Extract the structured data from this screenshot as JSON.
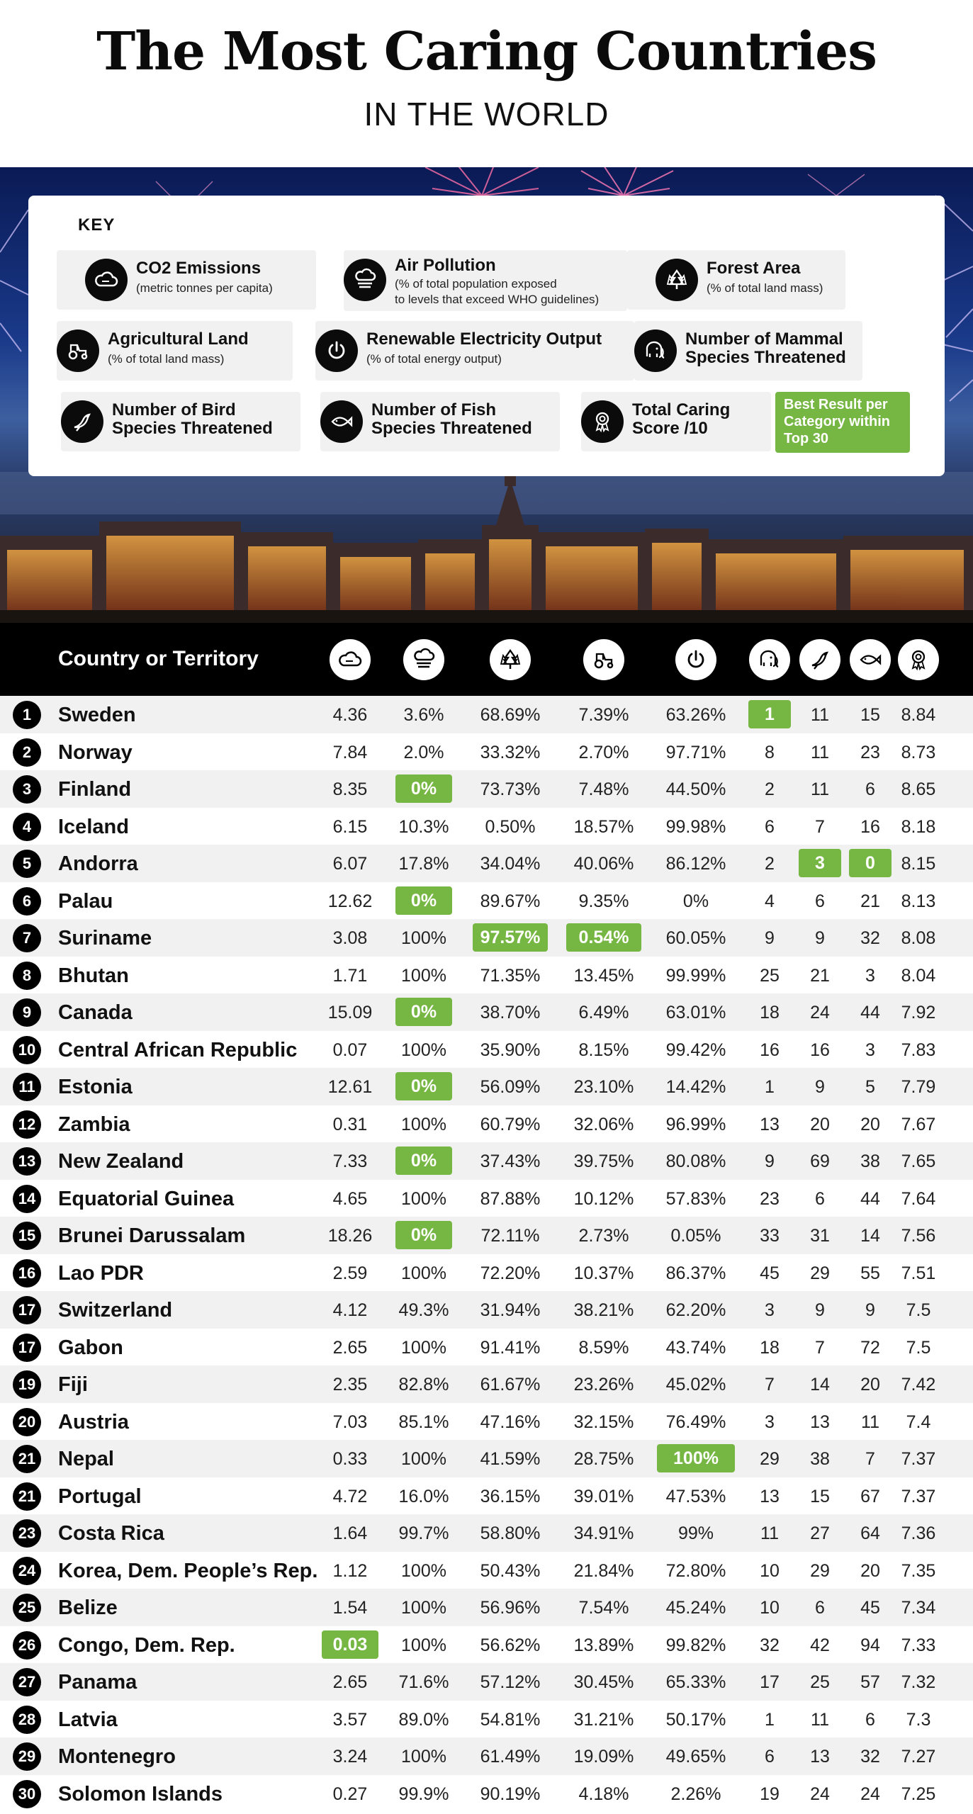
{
  "title": "The Most Caring Countries",
  "subtitle": "IN THE WORLD",
  "key": {
    "title": "KEY",
    "items": [
      {
        "icon": "co2-cloud-icon",
        "main": "CO2 Emissions",
        "sub": "(metric tonnes per capita)"
      },
      {
        "icon": "air-pollution-icon",
        "main": "Air Pollution",
        "sub": "(% of total population exposed",
        "sub2": "to levels that exceed WHO guidelines)"
      },
      {
        "icon": "forest-icon",
        "main": "Forest Area",
        "sub": "(% of total land mass)"
      },
      {
        "icon": "tractor-icon",
        "main": "Agricultural Land",
        "sub": "(% of total land mass)"
      },
      {
        "icon": "power-icon",
        "main": "Renewable Electricity Output",
        "sub": "(% of total energy output)"
      },
      {
        "icon": "elephant-icon",
        "main": "Number of Mammal",
        "sub": "Species Threatened"
      },
      {
        "icon": "bird-icon",
        "main": "Number of Bird",
        "sub": "Species Threatened"
      },
      {
        "icon": "fish-icon",
        "main": "Number of Fish",
        "sub": "Species Threatened"
      },
      {
        "icon": "award-icon",
        "main": "Total Caring",
        "sub": "Score /10"
      }
    ],
    "best_label_1": "Best Result per",
    "best_label_2": "Category within",
    "best_label_3": "Top 30",
    "best_color": "#76b643"
  },
  "table": {
    "header_label": "Country or Territory",
    "column_icons": [
      "co2-cloud-icon",
      "air-pollution-icon",
      "forest-icon",
      "tractor-icon",
      "power-icon",
      "elephant-icon",
      "bird-icon",
      "fish-icon",
      "award-icon"
    ],
    "rows": [
      {
        "rank": "1",
        "country": "Sweden",
        "values": [
          "4.36",
          "3.6%",
          "68.69%",
          "7.39%",
          "63.26%",
          "1",
          "11",
          "15",
          "8.84"
        ],
        "best": [
          5
        ]
      },
      {
        "rank": "2",
        "country": "Norway",
        "values": [
          "7.84",
          "2.0%",
          "33.32%",
          "2.70%",
          "97.71%",
          "8",
          "11",
          "23",
          "8.73"
        ],
        "best": []
      },
      {
        "rank": "3",
        "country": "Finland",
        "values": [
          "8.35",
          "0%",
          "73.73%",
          "7.48%",
          "44.50%",
          "2",
          "11",
          "6",
          "8.65"
        ],
        "best": [
          1
        ]
      },
      {
        "rank": "4",
        "country": "Iceland",
        "values": [
          "6.15",
          "10.3%",
          "0.50%",
          "18.57%",
          "99.98%",
          "6",
          "7",
          "16",
          "8.18"
        ],
        "best": []
      },
      {
        "rank": "5",
        "country": "Andorra",
        "values": [
          "6.07",
          "17.8%",
          "34.04%",
          "40.06%",
          "86.12%",
          "2",
          "3",
          "0",
          "8.15"
        ],
        "best": [
          6,
          7
        ]
      },
      {
        "rank": "6",
        "country": "Palau",
        "values": [
          "12.62",
          "0%",
          "89.67%",
          "9.35%",
          "0%",
          "4",
          "6",
          "21",
          "8.13"
        ],
        "best": [
          1
        ]
      },
      {
        "rank": "7",
        "country": "Suriname",
        "values": [
          "3.08",
          "100%",
          "97.57%",
          "0.54%",
          "60.05%",
          "9",
          "9",
          "32",
          "8.08"
        ],
        "best": [
          2,
          3
        ]
      },
      {
        "rank": "8",
        "country": "Bhutan",
        "values": [
          "1.71",
          "100%",
          "71.35%",
          "13.45%",
          "99.99%",
          "25",
          "21",
          "3",
          "8.04"
        ],
        "best": []
      },
      {
        "rank": "9",
        "country": "Canada",
        "values": [
          "15.09",
          "0%",
          "38.70%",
          "6.49%",
          "63.01%",
          "18",
          "24",
          "44",
          "7.92"
        ],
        "best": [
          1
        ]
      },
      {
        "rank": "10",
        "country": "Central African Republic",
        "values": [
          "0.07",
          "100%",
          "35.90%",
          "8.15%",
          "99.42%",
          "16",
          "16",
          "3",
          "7.83"
        ],
        "best": []
      },
      {
        "rank": "11",
        "country": "Estonia",
        "values": [
          "12.61",
          "0%",
          "56.09%",
          "23.10%",
          "14.42%",
          "1",
          "9",
          "5",
          "7.79"
        ],
        "best": [
          1
        ]
      },
      {
        "rank": "12",
        "country": "Zambia",
        "values": [
          "0.31",
          "100%",
          "60.79%",
          "32.06%",
          "96.99%",
          "13",
          "20",
          "20",
          "7.67"
        ],
        "best": []
      },
      {
        "rank": "13",
        "country": "New Zealand",
        "values": [
          "7.33",
          "0%",
          "37.43%",
          "39.75%",
          "80.08%",
          "9",
          "69",
          "38",
          "7.65"
        ],
        "best": [
          1
        ]
      },
      {
        "rank": "14",
        "country": "Equatorial Guinea",
        "values": [
          "4.65",
          "100%",
          "87.88%",
          "10.12%",
          "57.83%",
          "23",
          "6",
          "44",
          "7.64"
        ],
        "best": []
      },
      {
        "rank": "15",
        "country": "Brunei Darussalam",
        "values": [
          "18.26",
          "0%",
          "72.11%",
          "2.73%",
          "0.05%",
          "33",
          "31",
          "14",
          "7.56"
        ],
        "best": [
          1
        ]
      },
      {
        "rank": "16",
        "country": "Lao PDR",
        "values": [
          "2.59",
          "100%",
          "72.20%",
          "10.37%",
          "86.37%",
          "45",
          "29",
          "55",
          "7.51"
        ],
        "best": []
      },
      {
        "rank": "17",
        "country": "Switzerland",
        "values": [
          "4.12",
          "49.3%",
          "31.94%",
          "38.21%",
          "62.20%",
          "3",
          "9",
          "9",
          "7.5"
        ],
        "best": []
      },
      {
        "rank": "17",
        "country": "Gabon",
        "values": [
          "2.65",
          "100%",
          "91.41%",
          "8.59%",
          "43.74%",
          "18",
          "7",
          "72",
          "7.5"
        ],
        "best": []
      },
      {
        "rank": "19",
        "country": "Fiji",
        "values": [
          "2.35",
          "82.8%",
          "61.67%",
          "23.26%",
          "45.02%",
          "7",
          "14",
          "20",
          "7.42"
        ],
        "best": []
      },
      {
        "rank": "20",
        "country": "Austria",
        "values": [
          "7.03",
          "85.1%",
          "47.16%",
          "32.15%",
          "76.49%",
          "3",
          "13",
          "11",
          "7.4"
        ],
        "best": []
      },
      {
        "rank": "21",
        "country": "Nepal",
        "values": [
          "0.33",
          "100%",
          "41.59%",
          "28.75%",
          "100%",
          "29",
          "38",
          "7",
          "7.37"
        ],
        "best": [
          4
        ]
      },
      {
        "rank": "21",
        "country": "Portugal",
        "values": [
          "4.72",
          "16.0%",
          "36.15%",
          "39.01%",
          "47.53%",
          "13",
          "15",
          "67",
          "7.37"
        ],
        "best": []
      },
      {
        "rank": "23",
        "country": "Costa Rica",
        "values": [
          "1.64",
          "99.7%",
          "58.80%",
          "34.91%",
          "99%",
          "11",
          "27",
          "64",
          "7.36"
        ],
        "best": []
      },
      {
        "rank": "24",
        "country": "Korea, Dem. People’s Rep.",
        "values": [
          "1.12",
          "100%",
          "50.43%",
          "21.84%",
          "72.80%",
          "10",
          "29",
          "20",
          "7.35"
        ],
        "best": []
      },
      {
        "rank": "25",
        "country": "Belize",
        "values": [
          "1.54",
          "100%",
          "56.96%",
          "7.54%",
          "45.24%",
          "10",
          "6",
          "45",
          "7.34"
        ],
        "best": []
      },
      {
        "rank": "26",
        "country": "Congo, Dem. Rep.",
        "values": [
          "0.03",
          "100%",
          "56.62%",
          "13.89%",
          "99.82%",
          "32",
          "42",
          "94",
          "7.33"
        ],
        "best": [
          0
        ]
      },
      {
        "rank": "27",
        "country": "Panama",
        "values": [
          "2.65",
          "71.6%",
          "57.12%",
          "30.45%",
          "65.33%",
          "17",
          "25",
          "57",
          "7.32"
        ],
        "best": []
      },
      {
        "rank": "28",
        "country": "Latvia",
        "values": [
          "3.57",
          "89.0%",
          "54.81%",
          "31.21%",
          "50.17%",
          "1",
          "11",
          "6",
          "7.3"
        ],
        "best": []
      },
      {
        "rank": "29",
        "country": "Montenegro",
        "values": [
          "3.24",
          "100%",
          "61.49%",
          "19.09%",
          "49.65%",
          "6",
          "13",
          "32",
          "7.27"
        ],
        "best": []
      },
      {
        "rank": "30",
        "country": "Solomon Islands",
        "values": [
          "0.27",
          "99.9%",
          "90.19%",
          "4.18%",
          "2.26%",
          "19",
          "24",
          "24",
          "7.25"
        ],
        "best": []
      }
    ]
  }
}
